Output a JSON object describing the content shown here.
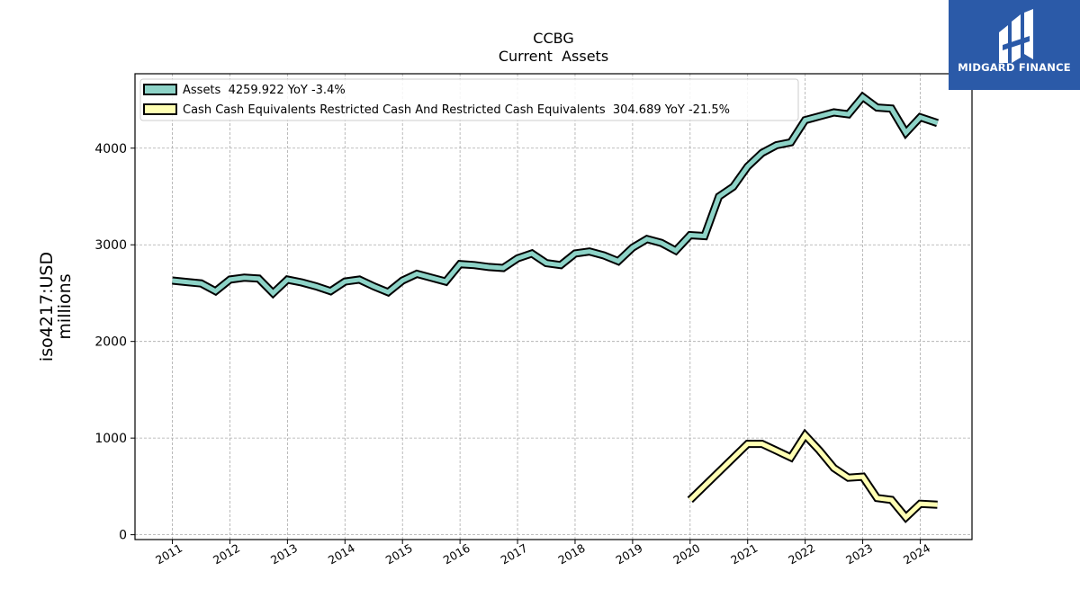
{
  "brand": {
    "name": "MIDGARD FINANCE",
    "bg_color": "#2b5aa8"
  },
  "chart_data": {
    "type": "line",
    "title": "CCBG",
    "subtitle": "Current  Assets",
    "ylabel_line1": "iso4217:USD",
    "ylabel_line2": "millions",
    "xlabel": "",
    "ylim": [
      -50,
      4770
    ],
    "yticks": [
      0,
      1000,
      2000,
      3000,
      4000
    ],
    "xlim": [
      2010.35,
      2024.9
    ],
    "xticks": [
      "2011",
      "2012",
      "2013",
      "2014",
      "2015",
      "2016",
      "2017",
      "2018",
      "2019",
      "2020",
      "2021",
      "2022",
      "2023",
      "2024"
    ],
    "grid": true,
    "legend_position": "top-left",
    "series": [
      {
        "name": "Assets",
        "legend_label": "Assets  4259.922 YoY -3.4%",
        "color": "#8dd3c7",
        "x": [
          2011.0,
          2011.25,
          2011.5,
          2011.75,
          2012.0,
          2012.25,
          2012.5,
          2012.75,
          2013.0,
          2013.25,
          2013.5,
          2013.75,
          2014.0,
          2014.25,
          2014.5,
          2014.75,
          2015.0,
          2015.25,
          2015.5,
          2015.75,
          2016.0,
          2016.25,
          2016.5,
          2016.75,
          2017.0,
          2017.25,
          2017.5,
          2017.75,
          2018.0,
          2018.25,
          2018.5,
          2018.75,
          2019.0,
          2019.25,
          2019.5,
          2019.75,
          2020.0,
          2020.25,
          2020.5,
          2020.75,
          2021.0,
          2021.25,
          2021.5,
          2021.75,
          2022.0,
          2022.25,
          2022.5,
          2022.75,
          2023.0,
          2023.25,
          2023.5,
          2023.75,
          2024.0,
          2024.3
        ],
        "values": [
          2630,
          2615,
          2600,
          2520,
          2640,
          2660,
          2650,
          2500,
          2640,
          2610,
          2570,
          2520,
          2620,
          2640,
          2570,
          2510,
          2630,
          2700,
          2660,
          2620,
          2800,
          2790,
          2770,
          2760,
          2860,
          2910,
          2810,
          2790,
          2910,
          2930,
          2890,
          2830,
          2970,
          3060,
          3020,
          2940,
          3100,
          3090,
          3500,
          3600,
          3810,
          3950,
          4030,
          4060,
          4290,
          4330,
          4370,
          4350,
          4530,
          4420,
          4410,
          4160,
          4320,
          4260
        ]
      },
      {
        "name": "Cash Cash Equivalents Restricted Cash And Restricted Cash Equivalents",
        "legend_label": "Cash Cash Equivalents Restricted Cash And Restricted Cash Equivalents  304.689 YoY -21.5%",
        "color": "#ffffb3",
        "x": [
          2020.0,
          2021.0,
          2021.25,
          2021.5,
          2021.75,
          2022.0,
          2022.25,
          2022.5,
          2022.75,
          2023.0,
          2023.25,
          2023.5,
          2023.75,
          2024.0,
          2024.3
        ],
        "values": [
          360,
          940,
          940,
          870,
          800,
          1030,
          870,
          690,
          590,
          600,
          380,
          360,
          180,
          320,
          310
        ]
      }
    ]
  }
}
